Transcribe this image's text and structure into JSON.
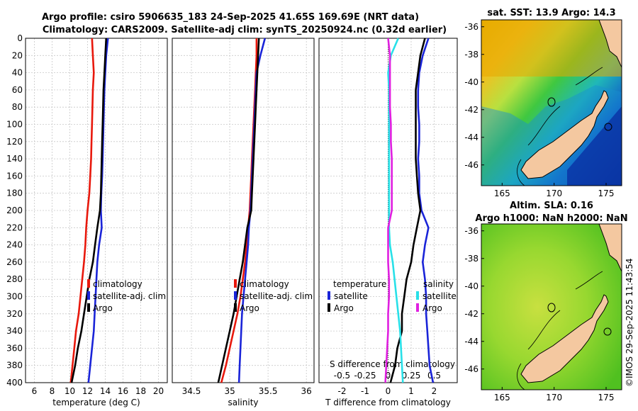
{
  "title": {
    "line1": "Argo profile: csiro 5906635_183 24-Sep-2025 41.65S 169.69E (NRT data)",
    "line2": "Climatology: CARS2009. Satellite-adj clim: synTS_20250924.nc (0.32d earlier)"
  },
  "colors": {
    "climatology": "#e8180c",
    "satellite": "#1a24d8",
    "argo": "#000000",
    "s_sat": "#28e0e8",
    "s_diff": "#e020e0"
  },
  "credit": "©IMOS 29-Sep-2025 11:43:54",
  "chart_data": [
    {
      "type": "line",
      "id": "temperature",
      "xlabel": "temperature (deg C)",
      "ylabel": "",
      "xlim": [
        5,
        21
      ],
      "ylim": [
        400,
        0
      ],
      "xticks": [
        6,
        8,
        10,
        12,
        14,
        16,
        18,
        20
      ],
      "yticks": [
        0,
        20,
        40,
        60,
        80,
        100,
        120,
        140,
        160,
        180,
        200,
        220,
        240,
        260,
        280,
        300,
        320,
        340,
        360,
        380,
        400
      ],
      "grid": true,
      "legend": [
        "climatology",
        "satellite-adj. clim",
        "Argo"
      ],
      "series": [
        {
          "name": "climatology",
          "color": "#e8180c",
          "x": [
            12.5,
            12.6,
            12.7,
            12.6,
            12.55,
            12.5,
            12.45,
            12.4,
            12.3,
            12.2,
            12.0,
            11.85,
            11.75,
            11.6,
            11.4,
            11.2,
            11.0,
            10.7,
            10.5,
            10.3,
            10.1
          ],
          "depth": [
            0,
            20,
            40,
            60,
            80,
            100,
            120,
            140,
            160,
            180,
            200,
            220,
            240,
            260,
            280,
            300,
            320,
            340,
            360,
            380,
            400
          ]
        },
        {
          "name": "satellite-adj. clim",
          "color": "#1a24d8",
          "x": [
            14.3,
            14.1,
            14.0,
            13.9,
            13.85,
            13.8,
            13.75,
            13.7,
            13.65,
            13.55,
            13.5,
            13.6,
            13.3,
            13.1,
            13.0,
            12.9,
            12.8,
            12.7,
            12.5,
            12.3,
            12.1
          ],
          "depth": [
            0,
            20,
            40,
            60,
            80,
            100,
            120,
            140,
            160,
            180,
            200,
            220,
            240,
            260,
            280,
            300,
            320,
            340,
            360,
            380,
            400
          ]
        },
        {
          "name": "Argo",
          "color": "#000000",
          "x": [
            14.1,
            14.0,
            13.9,
            13.8,
            13.75,
            13.7,
            13.65,
            13.6,
            13.55,
            13.5,
            13.4,
            13.1,
            12.85,
            12.6,
            12.2,
            11.9,
            11.6,
            11.3,
            10.9,
            10.6,
            10.2
          ],
          "depth": [
            0,
            20,
            40,
            60,
            80,
            100,
            120,
            140,
            160,
            180,
            200,
            220,
            240,
            260,
            280,
            300,
            320,
            340,
            360,
            380,
            400
          ]
        }
      ]
    },
    {
      "type": "line",
      "id": "salinity",
      "xlabel": "salinity",
      "xlim": [
        34.25,
        36.1
      ],
      "ylim": [
        400,
        0
      ],
      "xticks": [
        34.5,
        35,
        35.5,
        36
      ],
      "grid": true,
      "legend": [
        "climatology",
        "satellite-adj. clim",
        "Argo"
      ],
      "series": [
        {
          "name": "climatology",
          "color": "#e8180c",
          "x": [
            35.35,
            35.35,
            35.34,
            35.33,
            35.32,
            35.31,
            35.3,
            35.29,
            35.28,
            35.27,
            35.26,
            35.24,
            35.22,
            35.2,
            35.17,
            35.14,
            35.1,
            35.05,
            35.0,
            34.95,
            34.89
          ],
          "depth": [
            0,
            20,
            40,
            60,
            80,
            100,
            120,
            140,
            160,
            180,
            200,
            220,
            240,
            260,
            280,
            300,
            320,
            340,
            360,
            380,
            400
          ]
        },
        {
          "name": "satellite-adj. clim",
          "color": "#1a24d8",
          "x": [
            35.46,
            35.4,
            35.35,
            35.34,
            35.33,
            35.32,
            35.31,
            35.3,
            35.29,
            35.28,
            35.27,
            35.25,
            35.24,
            35.22,
            35.2,
            35.18,
            35.16,
            35.15,
            35.14,
            35.13,
            35.12
          ],
          "depth": [
            0,
            20,
            40,
            60,
            80,
            100,
            120,
            140,
            160,
            180,
            200,
            220,
            240,
            260,
            280,
            300,
            320,
            340,
            360,
            380,
            400
          ]
        },
        {
          "name": "Argo",
          "color": "#000000",
          "x": [
            35.38,
            35.37,
            35.36,
            35.35,
            35.34,
            35.33,
            35.32,
            35.31,
            35.3,
            35.29,
            35.28,
            35.23,
            35.2,
            35.17,
            35.13,
            35.09,
            35.05,
            35.0,
            34.95,
            34.9,
            34.85
          ],
          "depth": [
            0,
            20,
            40,
            60,
            80,
            100,
            120,
            140,
            160,
            180,
            200,
            220,
            240,
            260,
            280,
            300,
            320,
            340,
            360,
            380,
            400
          ]
        }
      ]
    },
    {
      "type": "line",
      "id": "differences",
      "xlabel": "T difference from climatology",
      "xlabel_top": "S difference from climatology",
      "xlim": [
        -3,
        3
      ],
      "xlim_salinity": [
        -0.75,
        0.75
      ],
      "ylim": [
        400,
        0
      ],
      "xticks": [
        -2,
        -1,
        0,
        1,
        2
      ],
      "xticks_salinity": [
        "-0.5",
        "-0.25",
        "0",
        "0.25",
        "0.5"
      ],
      "grid": true,
      "legend_headers": {
        "temperature": "temperature",
        "salinity": "salinity"
      },
      "legend": [
        "satellite",
        "Argo",
        "satellite",
        "Argo"
      ],
      "series": [
        {
          "name": "T satellite",
          "color": "#1a24d8",
          "x": [
            1.75,
            1.5,
            1.35,
            1.3,
            1.3,
            1.35,
            1.35,
            1.3,
            1.35,
            1.35,
            1.45,
            1.75,
            1.6,
            1.5,
            1.6,
            1.65,
            1.65,
            1.7,
            1.75,
            1.8,
            1.95
          ],
          "depth": [
            0,
            20,
            40,
            60,
            80,
            100,
            120,
            140,
            160,
            180,
            200,
            220,
            240,
            260,
            280,
            300,
            320,
            340,
            360,
            380,
            400
          ]
        },
        {
          "name": "T Argo",
          "color": "#000000",
          "x": [
            1.6,
            1.4,
            1.3,
            1.2,
            1.2,
            1.2,
            1.2,
            1.2,
            1.25,
            1.3,
            1.4,
            1.25,
            1.1,
            1.0,
            0.8,
            0.7,
            0.6,
            0.6,
            0.4,
            0.3,
            0.1
          ],
          "depth": [
            0,
            20,
            40,
            60,
            80,
            100,
            120,
            140,
            160,
            180,
            200,
            220,
            240,
            260,
            280,
            300,
            320,
            340,
            360,
            380,
            400
          ]
        },
        {
          "name": "S satellite",
          "color": "#28e0e8",
          "x": [
            0.11,
            0.03,
            0.0,
            0.01,
            0.01,
            0.01,
            0.01,
            0.01,
            0.01,
            0.01,
            0.01,
            0.01,
            0.02,
            0.05,
            0.07,
            0.09,
            0.11,
            0.13,
            0.14,
            0.15,
            0.16
          ],
          "depth": [
            0,
            20,
            40,
            60,
            80,
            100,
            120,
            140,
            160,
            180,
            200,
            220,
            240,
            260,
            280,
            300,
            320,
            340,
            360,
            380,
            400
          ]
        },
        {
          "name": "S Argo",
          "color": "#e020e0",
          "x": [
            0.0,
            0.02,
            0.02,
            0.02,
            0.02,
            0.03,
            0.03,
            0.04,
            0.04,
            0.04,
            0.04,
            0.0,
            0.0,
            0.0,
            0.01,
            0.01,
            0.0,
            0.0,
            -0.01,
            -0.02,
            -0.03
          ],
          "depth": [
            0,
            20,
            40,
            60,
            80,
            100,
            120,
            140,
            160,
            180,
            200,
            220,
            240,
            260,
            280,
            300,
            320,
            340,
            360,
            380,
            400
          ]
        }
      ]
    },
    {
      "type": "heatmap",
      "id": "sst_map",
      "title": "sat. SST: 13.9 Argo: 14.3",
      "xlim": [
        163,
        176.5
      ],
      "ylim": [
        -47.5,
        -35.5
      ],
      "xticks": [
        165,
        170,
        175
      ],
      "yticks": [
        -36,
        -38,
        -40,
        -42,
        -44,
        -46
      ],
      "float_position": {
        "lon": 169.69,
        "lat": -41.65
      }
    },
    {
      "type": "heatmap",
      "id": "sla_map",
      "title": "Altim. SLA: 0.16",
      "subtitle": "Argo h1000: NaN h2000: NaN",
      "xlim": [
        163,
        176.5
      ],
      "ylim": [
        -47.5,
        -35.5
      ],
      "xticks": [
        165,
        170,
        175
      ],
      "yticks": [
        -36,
        -38,
        -40,
        -42,
        -44,
        -46
      ],
      "float_position": {
        "lon": 169.69,
        "lat": -41.65
      }
    }
  ]
}
